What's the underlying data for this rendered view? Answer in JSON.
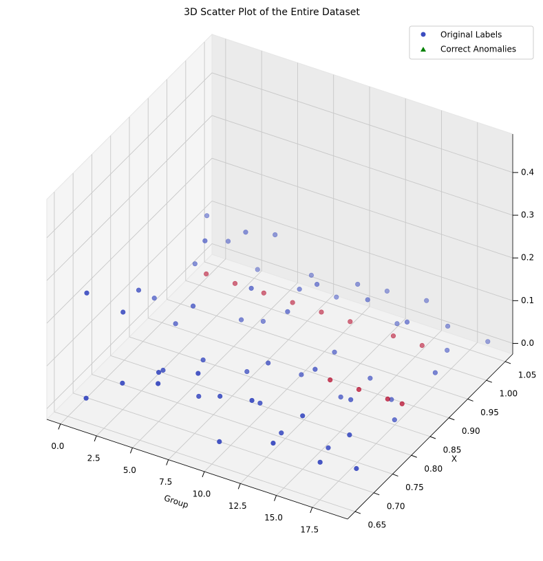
{
  "chart_data": {
    "type": "scatter3d",
    "title": "3D Scatter Plot of the Entire Dataset",
    "xlabel": "Group",
    "ylabel": "X",
    "xlim": [
      -0.95,
      19.95
    ],
    "ylim": [
      0.63,
      1.07
    ],
    "zlim": [
      -0.025,
      0.49
    ],
    "xticks": [
      {
        "value": 0,
        "label": "0.0"
      },
      2.5,
      {
        "value": 5,
        "label": "5.0"
      },
      7.5,
      {
        "value": 10,
        "label": "10.0"
      },
      12.5,
      {
        "value": 15,
        "label": "15.0"
      },
      17.5
    ],
    "yticks": [
      0.65,
      {
        "value": 0.7,
        "label": "0.70"
      },
      0.75,
      {
        "value": 0.8,
        "label": "0.80"
      },
      0.85,
      {
        "value": 0.9,
        "label": "0.90"
      },
      0.95,
      {
        "value": 1,
        "label": "1.00"
      },
      1.05
    ],
    "zticks": [
      {
        "value": 0,
        "label": "0.0"
      },
      0.1,
      0.2,
      0.3,
      0.4
    ],
    "grid": true,
    "legend": "upper right",
    "series": [
      {
        "name": "Original Labels",
        "marker": "o",
        "color": "#3b4cc0",
        "label_colors": [
          "#3b4cc0",
          "#b40426"
        ],
        "x": [
          0,
          0,
          0,
          1,
          1,
          1,
          2,
          2,
          2,
          3,
          3,
          3,
          4,
          4,
          4,
          5,
          5,
          5,
          6,
          6,
          6,
          7,
          7,
          7,
          8,
          8,
          8,
          9,
          9,
          9,
          10,
          10,
          10,
          11,
          11,
          11,
          12,
          12,
          12,
          13,
          13,
          13,
          14,
          14,
          14,
          15,
          15,
          15,
          16,
          16,
          16,
          17,
          17,
          17,
          18,
          18,
          18,
          19,
          19,
          19,
          1,
          3,
          5,
          7,
          9,
          11,
          13,
          15,
          17,
          18,
          16,
          14
        ],
        "y": [
          0.7,
          0.88,
          1.02,
          0.66,
          0.8,
          0.95,
          0.72,
          0.86,
          1.0,
          0.68,
          0.9,
          1.04,
          0.75,
          0.83,
          0.97,
          0.7,
          0.92,
          1.01,
          0.66,
          0.78,
          0.94,
          0.73,
          0.87,
          1.03,
          0.69,
          0.82,
          0.96,
          0.71,
          0.89,
          1.02,
          0.67,
          0.8,
          0.93,
          0.74,
          0.85,
          1.0,
          0.68,
          0.9,
          1.04,
          0.72,
          0.81,
          0.95,
          0.66,
          0.84,
          0.99,
          0.7,
          0.88,
          1.03,
          0.73,
          0.79,
          0.94,
          0.67,
          0.86,
          1.01,
          0.71,
          0.83,
          0.97,
          0.69,
          0.9,
          1.04,
          0.98,
          0.98,
          0.98,
          0.98,
          0.98,
          0.98,
          0.85,
          0.85,
          0.85,
          0.85,
          0.98,
          0.98
        ],
        "z": [
          0.22,
          0.05,
          0.12,
          0.02,
          0.15,
          0.08,
          0.18,
          0.03,
          0.1,
          0.06,
          0.2,
          0.01,
          0.04,
          0.12,
          0.17,
          0.09,
          0.02,
          0.14,
          0.11,
          0.06,
          0.01,
          0.03,
          0.16,
          0.05,
          0.13,
          0.02,
          0.09,
          0.07,
          0.11,
          0.03,
          0.01,
          0.08,
          0.15,
          0.05,
          0.02,
          0.1,
          0.12,
          0.04,
          0.06,
          0.02,
          0.09,
          0.13,
          0.06,
          0.01,
          0.05,
          0.1,
          0.03,
          0.08,
          0.01,
          0.07,
          0.12,
          0.04,
          0.02,
          0.06,
          0.08,
          0.01,
          0.05,
          0.03,
          0.07,
          0.02,
          0.03,
          0.03,
          0.03,
          0.03,
          0.03,
          0.03,
          0.03,
          0.03,
          0.03,
          0.03,
          0.03,
          0.03
        ],
        "labels": [
          0,
          0,
          0,
          0,
          0,
          0,
          0,
          0,
          0,
          0,
          0,
          0,
          0,
          0,
          0,
          0,
          0,
          0,
          0,
          0,
          0,
          0,
          0,
          0,
          0,
          0,
          0,
          0,
          0,
          0,
          0,
          0,
          0,
          0,
          0,
          0,
          0,
          0,
          0,
          0,
          0,
          0,
          0,
          0,
          0,
          0,
          0,
          0,
          0,
          0,
          0,
          0,
          0,
          0,
          0,
          0,
          0,
          0,
          0,
          0,
          1,
          1,
          1,
          1,
          1,
          1,
          1,
          1,
          1,
          1,
          1,
          1
        ]
      },
      {
        "name": "Correct Anomalies",
        "marker": "^",
        "color": "#008000",
        "x": [],
        "y": [],
        "z": []
      }
    ]
  }
}
